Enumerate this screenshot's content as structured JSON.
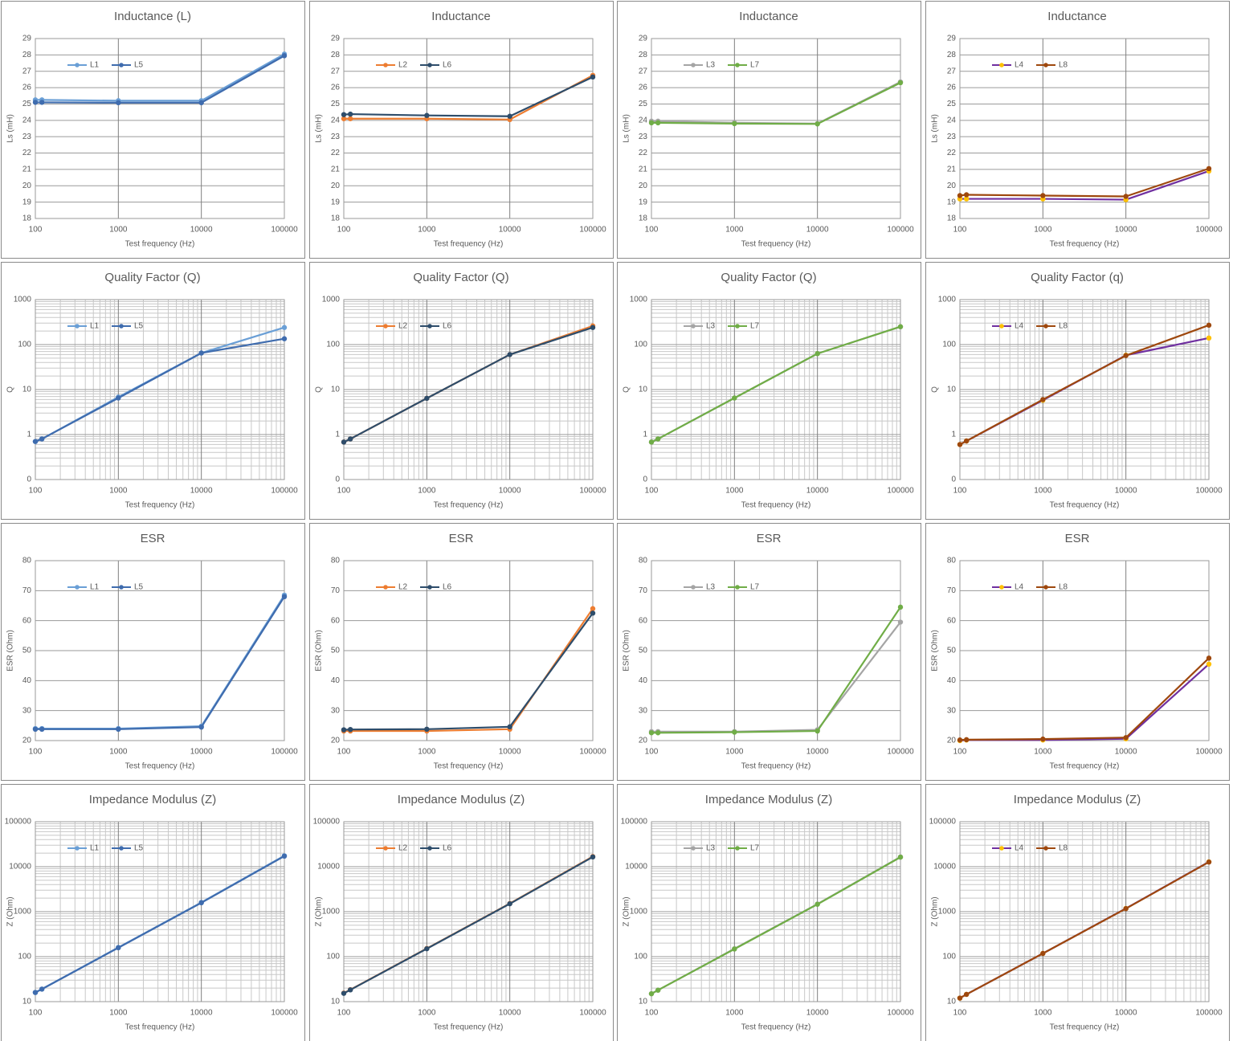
{
  "chart_data": [
    {
      "type": "line",
      "title": "Inductance (L)",
      "xlabel": "Test frequency (Hz)",
      "ylabel": "Ls (mH)",
      "xscale": "log",
      "yscale": "linear",
      "grid": true,
      "minor_grid": false,
      "legend": "upper left",
      "x": [
        100,
        120,
        1000,
        10000,
        100000
      ],
      "xlim": [
        100,
        100000
      ],
      "xticks": [
        100,
        1000,
        10000,
        100000
      ],
      "ylim": [
        18,
        29
      ],
      "yticks": [
        18,
        19,
        20,
        21,
        22,
        23,
        24,
        25,
        26,
        27,
        28,
        29
      ],
      "series": [
        {
          "name": "L1",
          "color": "#6a9fd6",
          "values": [
            25.25,
            25.25,
            25.2,
            25.2,
            28.05
          ]
        },
        {
          "name": "L5",
          "color": "#3f6cae",
          "values": [
            25.1,
            25.1,
            25.08,
            25.08,
            27.95
          ]
        }
      ]
    },
    {
      "type": "line",
      "title": "Inductance",
      "xlabel": "Test frequency (Hz)",
      "ylabel": "Ls (mH)",
      "xscale": "log",
      "yscale": "linear",
      "grid": true,
      "minor_grid": false,
      "legend": "upper left",
      "x": [
        100,
        120,
        1000,
        10000,
        100000
      ],
      "xlim": [
        100,
        100000
      ],
      "xticks": [
        100,
        1000,
        10000,
        100000
      ],
      "ylim": [
        18,
        29
      ],
      "yticks": [
        18,
        19,
        20,
        21,
        22,
        23,
        24,
        25,
        26,
        27,
        28,
        29
      ],
      "series": [
        {
          "name": "L2",
          "color": "#ed7d31",
          "values": [
            24.1,
            24.1,
            24.1,
            24.05,
            26.75
          ]
        },
        {
          "name": "L6",
          "color": "#2e4d6b",
          "values": [
            24.35,
            24.38,
            24.3,
            24.25,
            26.65
          ]
        }
      ]
    },
    {
      "type": "line",
      "title": "Inductance",
      "xlabel": "Test frequency (Hz)",
      "ylabel": "Ls (mH)",
      "xscale": "log",
      "yscale": "linear",
      "grid": true,
      "minor_grid": false,
      "legend": "upper left",
      "x": [
        100,
        120,
        1000,
        10000,
        100000
      ],
      "xlim": [
        100,
        100000
      ],
      "xticks": [
        100,
        1000,
        10000,
        100000
      ],
      "ylim": [
        18,
        29
      ],
      "yticks": [
        18,
        19,
        20,
        21,
        22,
        23,
        24,
        25,
        26,
        27,
        28,
        29
      ],
      "series": [
        {
          "name": "L3",
          "color": "#a5a5a5",
          "values": [
            23.95,
            23.95,
            23.85,
            23.8,
            26.35
          ]
        },
        {
          "name": "L7",
          "color": "#70ad47",
          "values": [
            23.85,
            23.85,
            23.8,
            23.78,
            26.3
          ]
        }
      ]
    },
    {
      "type": "line",
      "title": "Inductance",
      "xlabel": "Test frequency (Hz)",
      "ylabel": "Ls (mH)",
      "xscale": "log",
      "yscale": "linear",
      "grid": true,
      "minor_grid": false,
      "legend": "upper left",
      "x": [
        100,
        120,
        1000,
        10000,
        100000
      ],
      "xlim": [
        100,
        100000
      ],
      "xticks": [
        100,
        1000,
        10000,
        100000
      ],
      "ylim": [
        18,
        29
      ],
      "yticks": [
        18,
        19,
        20,
        21,
        22,
        23,
        24,
        25,
        26,
        27,
        28,
        29
      ],
      "series": [
        {
          "name": "L4",
          "color": "#7030a0",
          "marker_color": "#ffc000",
          "values": [
            19.2,
            19.2,
            19.2,
            19.15,
            20.9
          ]
        },
        {
          "name": "L8",
          "color": "#9e480e",
          "values": [
            19.4,
            19.45,
            19.4,
            19.35,
            21.05
          ]
        }
      ]
    },
    {
      "type": "line",
      "title": "Quality Factor (Q)",
      "xlabel": "Test frequency (Hz)",
      "ylabel": "Q",
      "xscale": "log",
      "yscale": "log",
      "grid": true,
      "minor_grid": true,
      "legend": "upper left",
      "x": [
        100,
        120,
        1000,
        10000,
        100000
      ],
      "xlim": [
        100,
        100000
      ],
      "xticks": [
        100,
        1000,
        10000,
        100000
      ],
      "ylim": [
        0.1,
        1000
      ],
      "yticks": [
        {
          "value": 0.1,
          "label": "0"
        },
        1,
        10,
        100,
        1000
      ],
      "series": [
        {
          "name": "L1",
          "color": "#6a9fd6",
          "values": [
            0.7,
            0.8,
            6.8,
            65,
            240
          ]
        },
        {
          "name": "L5",
          "color": "#3f6cae",
          "values": [
            0.7,
            0.8,
            6.5,
            65,
            135
          ]
        }
      ]
    },
    {
      "type": "line",
      "title": "Quality Factor (Q)",
      "xlabel": "Test frequency (Hz)",
      "ylabel": "Q",
      "xscale": "log",
      "yscale": "log",
      "grid": true,
      "minor_grid": true,
      "legend": "upper left",
      "x": [
        100,
        120,
        1000,
        10000,
        100000
      ],
      "xlim": [
        100,
        100000
      ],
      "xticks": [
        100,
        1000,
        10000,
        100000
      ],
      "ylim": [
        0.1,
        1000
      ],
      "yticks": [
        {
          "value": 0.1,
          "label": "0"
        },
        1,
        10,
        100,
        1000
      ],
      "series": [
        {
          "name": "L2",
          "color": "#ed7d31",
          "values": [
            0.68,
            0.8,
            6.4,
            60,
            260
          ]
        },
        {
          "name": "L6",
          "color": "#2e4d6b",
          "values": [
            0.68,
            0.8,
            6.4,
            60,
            240
          ]
        }
      ]
    },
    {
      "type": "line",
      "title": "Quality Factor (Q)",
      "xlabel": "Test frequency (Hz)",
      "ylabel": "Q",
      "xscale": "log",
      "yscale": "log",
      "grid": true,
      "minor_grid": true,
      "legend": "upper left",
      "x": [
        100,
        120,
        1000,
        10000,
        100000
      ],
      "xlim": [
        100,
        100000
      ],
      "xticks": [
        100,
        1000,
        10000,
        100000
      ],
      "ylim": [
        0.1,
        1000
      ],
      "yticks": [
        {
          "value": 0.1,
          "label": "0"
        },
        1,
        10,
        100,
        1000
      ],
      "series": [
        {
          "name": "L3",
          "color": "#a5a5a5",
          "values": [
            0.68,
            0.8,
            6.5,
            63,
            250
          ]
        },
        {
          "name": "L7",
          "color": "#70ad47",
          "values": [
            0.68,
            0.8,
            6.5,
            63,
            250
          ]
        }
      ]
    },
    {
      "type": "line",
      "title": "Quality Factor (q)",
      "xlabel": "Test frequency (Hz)",
      "ylabel": "Q",
      "xscale": "log",
      "yscale": "log",
      "grid": true,
      "minor_grid": true,
      "legend": "upper left",
      "x": [
        100,
        120,
        1000,
        10000,
        100000
      ],
      "xlim": [
        100,
        100000
      ],
      "xticks": [
        100,
        1000,
        10000,
        100000
      ],
      "ylim": [
        0.1,
        1000
      ],
      "yticks": [
        {
          "value": 0.1,
          "label": "0"
        },
        1,
        10,
        100,
        1000
      ],
      "series": [
        {
          "name": "L4",
          "color": "#7030a0",
          "marker_color": "#ffc000",
          "values": [
            0.6,
            0.72,
            5.8,
            58,
            140
          ]
        },
        {
          "name": "L8",
          "color": "#9e480e",
          "values": [
            0.6,
            0.72,
            6,
            57,
            270
          ]
        }
      ]
    },
    {
      "type": "line",
      "title": "ESR",
      "xlabel": "Test frequency (Hz)",
      "ylabel": "ESR (Ohm)",
      "xscale": "log",
      "yscale": "linear",
      "grid": true,
      "minor_grid": false,
      "legend": "upper left",
      "x": [
        100,
        120,
        1000,
        10000,
        100000
      ],
      "xlim": [
        100,
        100000
      ],
      "xticks": [
        100,
        1000,
        10000,
        100000
      ],
      "ylim": [
        20,
        80
      ],
      "yticks": [
        20,
        30,
        40,
        50,
        60,
        70,
        80
      ],
      "series": [
        {
          "name": "L1",
          "color": "#6a9fd6",
          "values": [
            24,
            24,
            24,
            24.8,
            68.5
          ]
        },
        {
          "name": "L5",
          "color": "#3f6cae",
          "values": [
            23.8,
            23.8,
            23.8,
            24.5,
            68
          ]
        }
      ]
    },
    {
      "type": "line",
      "title": "ESR",
      "xlabel": "Test frequency (Hz)",
      "ylabel": "ESR (Ohm)",
      "xscale": "log",
      "yscale": "linear",
      "grid": true,
      "minor_grid": false,
      "legend": "upper left",
      "x": [
        100,
        120,
        1000,
        10000,
        100000
      ],
      "xlim": [
        100,
        100000
      ],
      "xticks": [
        100,
        1000,
        10000,
        100000
      ],
      "ylim": [
        20,
        80
      ],
      "yticks": [
        20,
        30,
        40,
        50,
        60,
        70,
        80
      ],
      "series": [
        {
          "name": "L2",
          "color": "#ed7d31",
          "values": [
            23.2,
            23.2,
            23.2,
            23.8,
            64
          ]
        },
        {
          "name": "L6",
          "color": "#2e4d6b",
          "values": [
            23.6,
            23.7,
            23.8,
            24.6,
            62.5
          ]
        }
      ]
    },
    {
      "type": "line",
      "title": "ESR",
      "xlabel": "Test frequency (Hz)",
      "ylabel": "ESR (Ohm)",
      "xscale": "log",
      "yscale": "linear",
      "grid": true,
      "minor_grid": false,
      "legend": "upper left",
      "x": [
        100,
        120,
        1000,
        10000,
        100000
      ],
      "xlim": [
        100,
        100000
      ],
      "xticks": [
        100,
        1000,
        10000,
        100000
      ],
      "ylim": [
        20,
        80
      ],
      "yticks": [
        20,
        30,
        40,
        50,
        60,
        70,
        80
      ],
      "series": [
        {
          "name": "L3",
          "color": "#a5a5a5",
          "values": [
            23,
            23,
            23,
            23.6,
            59.5
          ]
        },
        {
          "name": "L7",
          "color": "#70ad47",
          "values": [
            22.6,
            22.6,
            22.8,
            23.2,
            64.5
          ]
        }
      ]
    },
    {
      "type": "line",
      "title": "ESR",
      "xlabel": "Test frequency (Hz)",
      "ylabel": "ESR (Ohm)",
      "xscale": "log",
      "yscale": "linear",
      "grid": true,
      "minor_grid": false,
      "legend": "upper left",
      "x": [
        100,
        120,
        1000,
        10000,
        100000
      ],
      "xlim": [
        100,
        100000
      ],
      "xticks": [
        100,
        1000,
        10000,
        100000
      ],
      "ylim": [
        20,
        80
      ],
      "yticks": [
        20,
        30,
        40,
        50,
        60,
        70,
        80
      ],
      "series": [
        {
          "name": "L4",
          "color": "#7030a0",
          "marker_color": "#ffc000",
          "values": [
            20,
            20.2,
            20.2,
            20.6,
            45.5
          ]
        },
        {
          "name": "L8",
          "color": "#9e480e",
          "values": [
            20.2,
            20.3,
            20.5,
            21,
            47.5
          ]
        }
      ]
    },
    {
      "type": "line",
      "title": "Impedance Modulus (Z)",
      "xlabel": "Test frequency (Hz)",
      "ylabel": "Z (Ohm)",
      "xscale": "log",
      "yscale": "log",
      "grid": true,
      "minor_grid": true,
      "legend": "upper left",
      "x": [
        100,
        120,
        1000,
        10000,
        100000
      ],
      "xlim": [
        100,
        100000
      ],
      "xticks": [
        100,
        1000,
        10000,
        100000
      ],
      "ylim": [
        10,
        100000
      ],
      "yticks": [
        10,
        100,
        1000,
        10000,
        100000
      ],
      "series": [
        {
          "name": "L1",
          "color": "#6a9fd6",
          "values": [
            16,
            19,
            160,
            1600,
            17500
          ]
        },
        {
          "name": "L5",
          "color": "#3f6cae",
          "values": [
            16,
            19,
            158,
            1580,
            17200
          ]
        }
      ]
    },
    {
      "type": "line",
      "title": "Impedance Modulus (Z)",
      "xlabel": "Test frequency (Hz)",
      "ylabel": "Z (Ohm)",
      "xscale": "log",
      "yscale": "log",
      "grid": true,
      "minor_grid": true,
      "legend": "upper left",
      "x": [
        100,
        120,
        1000,
        10000,
        100000
      ],
      "xlim": [
        100,
        100000
      ],
      "xticks": [
        100,
        1000,
        10000,
        100000
      ],
      "ylim": [
        10,
        100000
      ],
      "yticks": [
        10,
        100,
        1000,
        10000,
        100000
      ],
      "series": [
        {
          "name": "L2",
          "color": "#ed7d31",
          "values": [
            15.5,
            18.5,
            152,
            1520,
            16800
          ]
        },
        {
          "name": "L6",
          "color": "#2e4d6b",
          "values": [
            15.3,
            18.3,
            150,
            1500,
            16500
          ]
        }
      ]
    },
    {
      "type": "line",
      "title": "Impedance Modulus (Z)",
      "xlabel": "Test frequency (Hz)",
      "ylabel": "Z (Ohm)",
      "xscale": "log",
      "yscale": "log",
      "grid": true,
      "minor_grid": true,
      "legend": "upper left",
      "x": [
        100,
        120,
        1000,
        10000,
        100000
      ],
      "xlim": [
        100,
        100000
      ],
      "xticks": [
        100,
        1000,
        10000,
        100000
      ],
      "ylim": [
        10,
        100000
      ],
      "yticks": [
        10,
        100,
        1000,
        10000,
        100000
      ],
      "series": [
        {
          "name": "L3",
          "color": "#a5a5a5",
          "values": [
            15,
            18,
            150,
            1480,
            16500
          ]
        },
        {
          "name": "L7",
          "color": "#70ad47",
          "values": [
            15,
            18,
            148,
            1460,
            16300
          ]
        }
      ]
    },
    {
      "type": "line",
      "title": "Impedance Modulus (Z)",
      "xlabel": "Test frequency (Hz)",
      "ylabel": "Z (Ohm)",
      "xscale": "log",
      "yscale": "log",
      "grid": true,
      "minor_grid": true,
      "legend": "upper left",
      "x": [
        100,
        120,
        1000,
        10000,
        100000
      ],
      "xlim": [
        100,
        100000
      ],
      "xticks": [
        100,
        1000,
        10000,
        100000
      ],
      "ylim": [
        10,
        100000
      ],
      "yticks": [
        10,
        100,
        1000,
        10000,
        100000
      ],
      "series": [
        {
          "name": "L4",
          "color": "#7030a0",
          "marker_color": "#ffc000",
          "values": [
            12,
            14.5,
            118,
            1180,
            12800
          ]
        },
        {
          "name": "L8",
          "color": "#9e480e",
          "values": [
            12,
            14.5,
            118,
            1170,
            12700
          ]
        }
      ]
    }
  ]
}
